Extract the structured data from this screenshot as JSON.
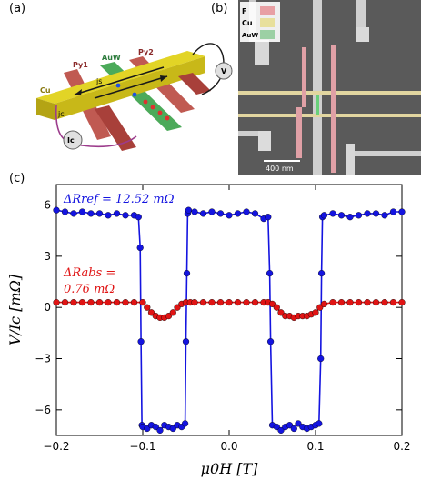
{
  "panels": {
    "a": "(a)",
    "b": "(b)",
    "c": "(c)"
  },
  "schematic": {
    "labels": {
      "py1": "Py1",
      "py2": "Py2",
      "auw": "AuW",
      "cu": "Cu",
      "v": "V",
      "ic": "Ic",
      "jc": "jc",
      "js": "js"
    },
    "colors": {
      "cu": "#d8c81c",
      "py": "#b8443c",
      "auw": "#3c9c4c",
      "wire": "#9c3c8c"
    }
  },
  "sem": {
    "legend": [
      {
        "label": "F",
        "color": "#e8a0a4"
      },
      {
        "label": "Cu",
        "color": "#e8e09c"
      },
      {
        "label": "AuW",
        "color": "#9cd0a4"
      }
    ],
    "scalebar": "400 nm"
  },
  "chart_data": {
    "type": "line",
    "xlabel": "μ0H [T]",
    "ylabel": "V/Ic [mΩ]",
    "xlim": [
      -0.2,
      0.2
    ],
    "ylim": [
      -7.5,
      7.2
    ],
    "xticks": [
      "−0.2",
      "−0.1",
      "0.0",
      "0.1",
      "0.2"
    ],
    "yticks": [
      "6",
      "3",
      "0",
      "−3",
      "−6"
    ],
    "annotations": [
      {
        "text": "ΔRref = 12.52 mΩ",
        "color": "#1414e0"
      },
      {
        "text": "ΔRabs =",
        "color": "#e01414"
      },
      {
        "text": "0.76 mΩ",
        "color": "#e01414"
      }
    ],
    "series": [
      {
        "color": "#1414e0",
        "x": [
          -0.2,
          -0.19,
          -0.18,
          -0.17,
          -0.16,
          -0.15,
          -0.14,
          -0.13,
          -0.12,
          -0.11,
          -0.105,
          -0.103,
          -0.102,
          -0.101,
          -0.1,
          -0.095,
          -0.09,
          -0.085,
          -0.08,
          -0.075,
          -0.07,
          -0.065,
          -0.06,
          -0.055,
          -0.051,
          -0.05,
          -0.049,
          -0.048,
          -0.047,
          -0.04,
          -0.03,
          -0.02,
          -0.01,
          0.0,
          0.01,
          0.02,
          0.03,
          0.04,
          0.045,
          0.047,
          0.048,
          0.05,
          0.055,
          0.06,
          0.065,
          0.07,
          0.075,
          0.08,
          0.085,
          0.09,
          0.095,
          0.1,
          0.104,
          0.106,
          0.107,
          0.108,
          0.11,
          0.12,
          0.13,
          0.14,
          0.15,
          0.16,
          0.17,
          0.18,
          0.19,
          0.2
        ],
        "y": [
          5.7,
          5.6,
          5.5,
          5.6,
          5.5,
          5.5,
          5.4,
          5.5,
          5.4,
          5.4,
          5.3,
          3.5,
          -2.0,
          -6.9,
          -7.0,
          -7.1,
          -6.9,
          -7.0,
          -7.2,
          -6.9,
          -7.0,
          -7.1,
          -6.9,
          -7.0,
          -6.8,
          -2.0,
          2.0,
          5.5,
          5.7,
          5.6,
          5.5,
          5.6,
          5.5,
          5.4,
          5.5,
          5.6,
          5.5,
          5.2,
          5.3,
          2.0,
          -2.0,
          -6.9,
          -7.0,
          -7.2,
          -7.0,
          -6.9,
          -7.1,
          -6.8,
          -7.0,
          -7.1,
          -7.0,
          -6.9,
          -6.8,
          -3.0,
          2.0,
          5.3,
          5.4,
          5.5,
          5.4,
          5.3,
          5.4,
          5.5,
          5.5,
          5.4,
          5.6,
          5.6
        ]
      },
      {
        "color": "#e01414",
        "x": [
          -0.2,
          -0.19,
          -0.18,
          -0.17,
          -0.16,
          -0.15,
          -0.14,
          -0.13,
          -0.12,
          -0.11,
          -0.1,
          -0.095,
          -0.09,
          -0.085,
          -0.08,
          -0.075,
          -0.07,
          -0.065,
          -0.06,
          -0.055,
          -0.05,
          -0.045,
          -0.04,
          -0.03,
          -0.02,
          -0.01,
          0.0,
          0.01,
          0.02,
          0.03,
          0.04,
          0.045,
          0.05,
          0.055,
          0.06,
          0.065,
          0.07,
          0.075,
          0.08,
          0.085,
          0.09,
          0.095,
          0.1,
          0.105,
          0.11,
          0.12,
          0.13,
          0.14,
          0.15,
          0.16,
          0.17,
          0.18,
          0.19,
          0.2
        ],
        "y": [
          0.3,
          0.3,
          0.3,
          0.3,
          0.3,
          0.3,
          0.3,
          0.3,
          0.3,
          0.3,
          0.3,
          0.0,
          -0.3,
          -0.5,
          -0.6,
          -0.6,
          -0.5,
          -0.3,
          0.0,
          0.2,
          0.3,
          0.3,
          0.3,
          0.3,
          0.3,
          0.3,
          0.3,
          0.3,
          0.3,
          0.3,
          0.3,
          0.3,
          0.2,
          0.0,
          -0.3,
          -0.5,
          -0.5,
          -0.6,
          -0.5,
          -0.5,
          -0.5,
          -0.4,
          -0.3,
          0.0,
          0.2,
          0.3,
          0.3,
          0.3,
          0.3,
          0.3,
          0.3,
          0.3,
          0.3,
          0.3
        ]
      }
    ]
  }
}
